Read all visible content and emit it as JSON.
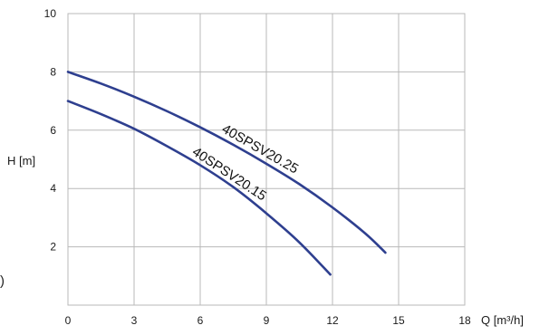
{
  "chart_data": {
    "type": "line",
    "xlabel": "Q [m³/h]",
    "ylabel": "H [m]",
    "xlim": [
      0,
      18
    ],
    "ylim": [
      0,
      10
    ],
    "x_ticks": [
      "0",
      "3",
      "6",
      "9",
      "12",
      "15",
      "18"
    ],
    "y_ticks": [
      "2",
      "4",
      "6",
      "8",
      "10"
    ],
    "grid": true,
    "series": [
      {
        "name": "40SPSV20.25",
        "color": "#2e3f8f",
        "x": [
          0,
          1.5,
          3,
          4.5,
          6,
          7.5,
          9,
          10.5,
          12,
          13.5,
          14.4
        ],
        "y": [
          8.0,
          7.6,
          7.15,
          6.65,
          6.1,
          5.5,
          4.85,
          4.15,
          3.35,
          2.45,
          1.8
        ]
      },
      {
        "name": "40SPSV20.15",
        "color": "#2e3f8f",
        "x": [
          0,
          1.5,
          3,
          4.5,
          6,
          7.5,
          9,
          10.5,
          11.9
        ],
        "y": [
          7.0,
          6.55,
          6.05,
          5.45,
          4.8,
          4.05,
          3.15,
          2.15,
          1.05
        ]
      }
    ]
  },
  "margin_text": ")"
}
